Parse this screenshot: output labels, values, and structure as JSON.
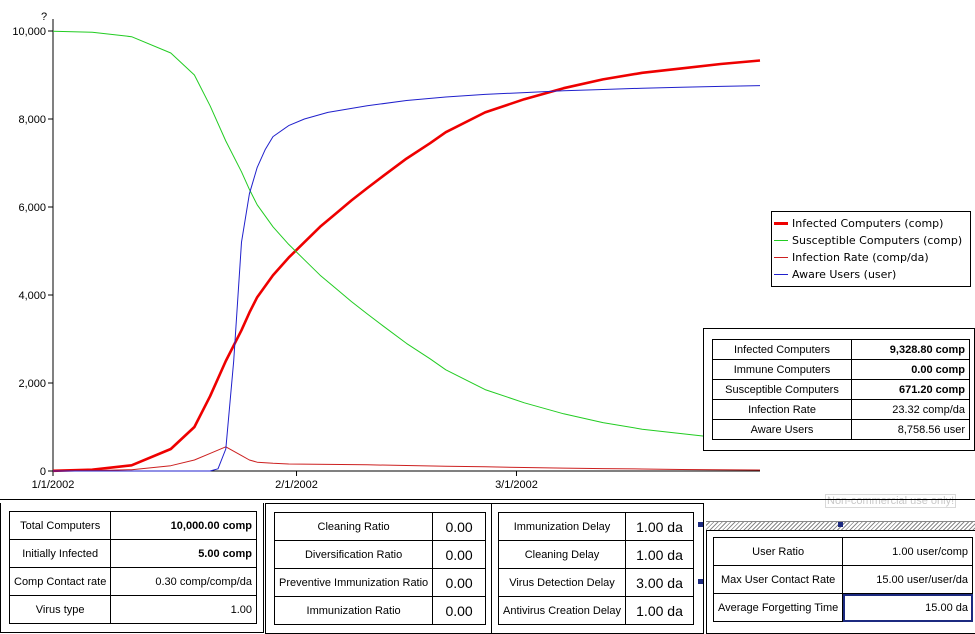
{
  "chart_data": {
    "type": "line",
    "y_unit_label": "?",
    "ylim": [
      0,
      10000
    ],
    "y_ticks": [
      "0",
      "2,000",
      "4,000",
      "6,000",
      "8,000",
      "10,000"
    ],
    "y_tick_values": [
      0,
      2000,
      4000,
      6000,
      8000,
      10000
    ],
    "x_ticks": [
      "1/1/2002",
      "2/1/2002",
      "3/1/2002"
    ],
    "x_tick_values": [
      0,
      31,
      59
    ],
    "xlim": [
      0,
      90
    ],
    "grid": false,
    "legend_placement": "right",
    "series": [
      {
        "name": "Infected Computers (comp)",
        "color": "#ee0000",
        "x": [
          0,
          5,
          10,
          15,
          18,
          20,
          22,
          24,
          25,
          26,
          28,
          30,
          32,
          34,
          36,
          38,
          40,
          42,
          45,
          48,
          50,
          55,
          60,
          65,
          70,
          75,
          80,
          85,
          90
        ],
        "y": [
          5,
          30,
          130,
          500,
          1000,
          1700,
          2500,
          3200,
          3600,
          3950,
          4450,
          4850,
          5200,
          5550,
          5850,
          6150,
          6430,
          6700,
          7100,
          7450,
          7700,
          8150,
          8450,
          8700,
          8900,
          9050,
          9150,
          9250,
          9330
        ]
      },
      {
        "name": "Susceptible Computers (comp)",
        "color": "#22cc22",
        "x": [
          0,
          5,
          10,
          15,
          18,
          20,
          22,
          24,
          25,
          26,
          28,
          30,
          32,
          34,
          36,
          38,
          40,
          42,
          45,
          48,
          50,
          55,
          60,
          65,
          70,
          75,
          80,
          85,
          90
        ],
        "y": [
          9995,
          9970,
          9870,
          9500,
          9000,
          8300,
          7500,
          6800,
          6400,
          6050,
          5550,
          5150,
          4800,
          4450,
          4150,
          3850,
          3570,
          3300,
          2900,
          2550,
          2300,
          1850,
          1550,
          1300,
          1100,
          950,
          850,
          750,
          671
        ]
      },
      {
        "name": "Infection Rate (comp/da)",
        "color": "#cc2020",
        "x": [
          0,
          5,
          10,
          15,
          18,
          20,
          22,
          24,
          25,
          26,
          28,
          30,
          35,
          40,
          45,
          50,
          55,
          60,
          65,
          70,
          75,
          80,
          85,
          90
        ],
        "y": [
          1,
          8,
          30,
          120,
          250,
          400,
          550,
          350,
          250,
          200,
          175,
          160,
          150,
          140,
          125,
          110,
          95,
          80,
          65,
          55,
          45,
          35,
          30,
          23
        ]
      },
      {
        "name": "Aware Users (user)",
        "color": "#2020cc",
        "x": [
          0,
          5,
          10,
          15,
          18,
          20,
          21,
          22,
          23,
          24,
          25,
          26,
          27,
          28,
          30,
          32,
          35,
          40,
          45,
          50,
          55,
          60,
          65,
          70,
          75,
          80,
          85,
          90
        ],
        "y": [
          0,
          0,
          0,
          0,
          0,
          0,
          50,
          500,
          2500,
          5200,
          6300,
          6900,
          7300,
          7600,
          7850,
          8000,
          8150,
          8300,
          8420,
          8500,
          8560,
          8600,
          8640,
          8670,
          8700,
          8720,
          8740,
          8758
        ]
      }
    ]
  },
  "results_table": [
    {
      "label": "Infected Computers",
      "value": "9,328.80 comp",
      "bold": true
    },
    {
      "label": "Immune Computers",
      "value": "0.00 comp",
      "bold": true
    },
    {
      "label": "Susceptible Computers",
      "value": "671.20 comp",
      "bold": true
    },
    {
      "label": "Infection Rate",
      "value": "23.32 comp/da",
      "bold": false
    },
    {
      "label": "Aware Users",
      "value": "8,758.56 user",
      "bold": false
    }
  ],
  "watermark": "Non-commercial use only!",
  "panel1": [
    {
      "label": "Total Computers",
      "value": "10,000.00 comp",
      "bold": true
    },
    {
      "label": "Initially Infected",
      "value": "5.00 comp",
      "bold": true
    },
    {
      "label": "Comp Contact rate",
      "value": "0.30 comp/comp/da",
      "bold": false
    },
    {
      "label": "Virus type",
      "value": "1.00",
      "bold": false
    }
  ],
  "panel2": [
    {
      "label": "Cleaning Ratio",
      "value": "0.00"
    },
    {
      "label": "Diversification Ratio",
      "value": "0.00"
    },
    {
      "label": "Preventive Immunization Ratio",
      "value": "0.00"
    },
    {
      "label": "Immunization Ratio",
      "value": "0.00"
    }
  ],
  "panel3": [
    {
      "label": "Immunization Delay",
      "value": "1.00 da"
    },
    {
      "label": "Cleaning Delay",
      "value": "1.00 da"
    },
    {
      "label": "Virus Detection Delay",
      "value": "3.00 da"
    },
    {
      "label": "Antivirus Creation Delay",
      "value": "1.00 da"
    }
  ],
  "panel4": [
    {
      "label": "User Ratio",
      "value": "1.00 user/comp"
    },
    {
      "label": "Max User Contact Rate",
      "value": "15.00 user/user/da"
    },
    {
      "label": "Average Forgetting Time",
      "value": "15.00 da"
    }
  ]
}
